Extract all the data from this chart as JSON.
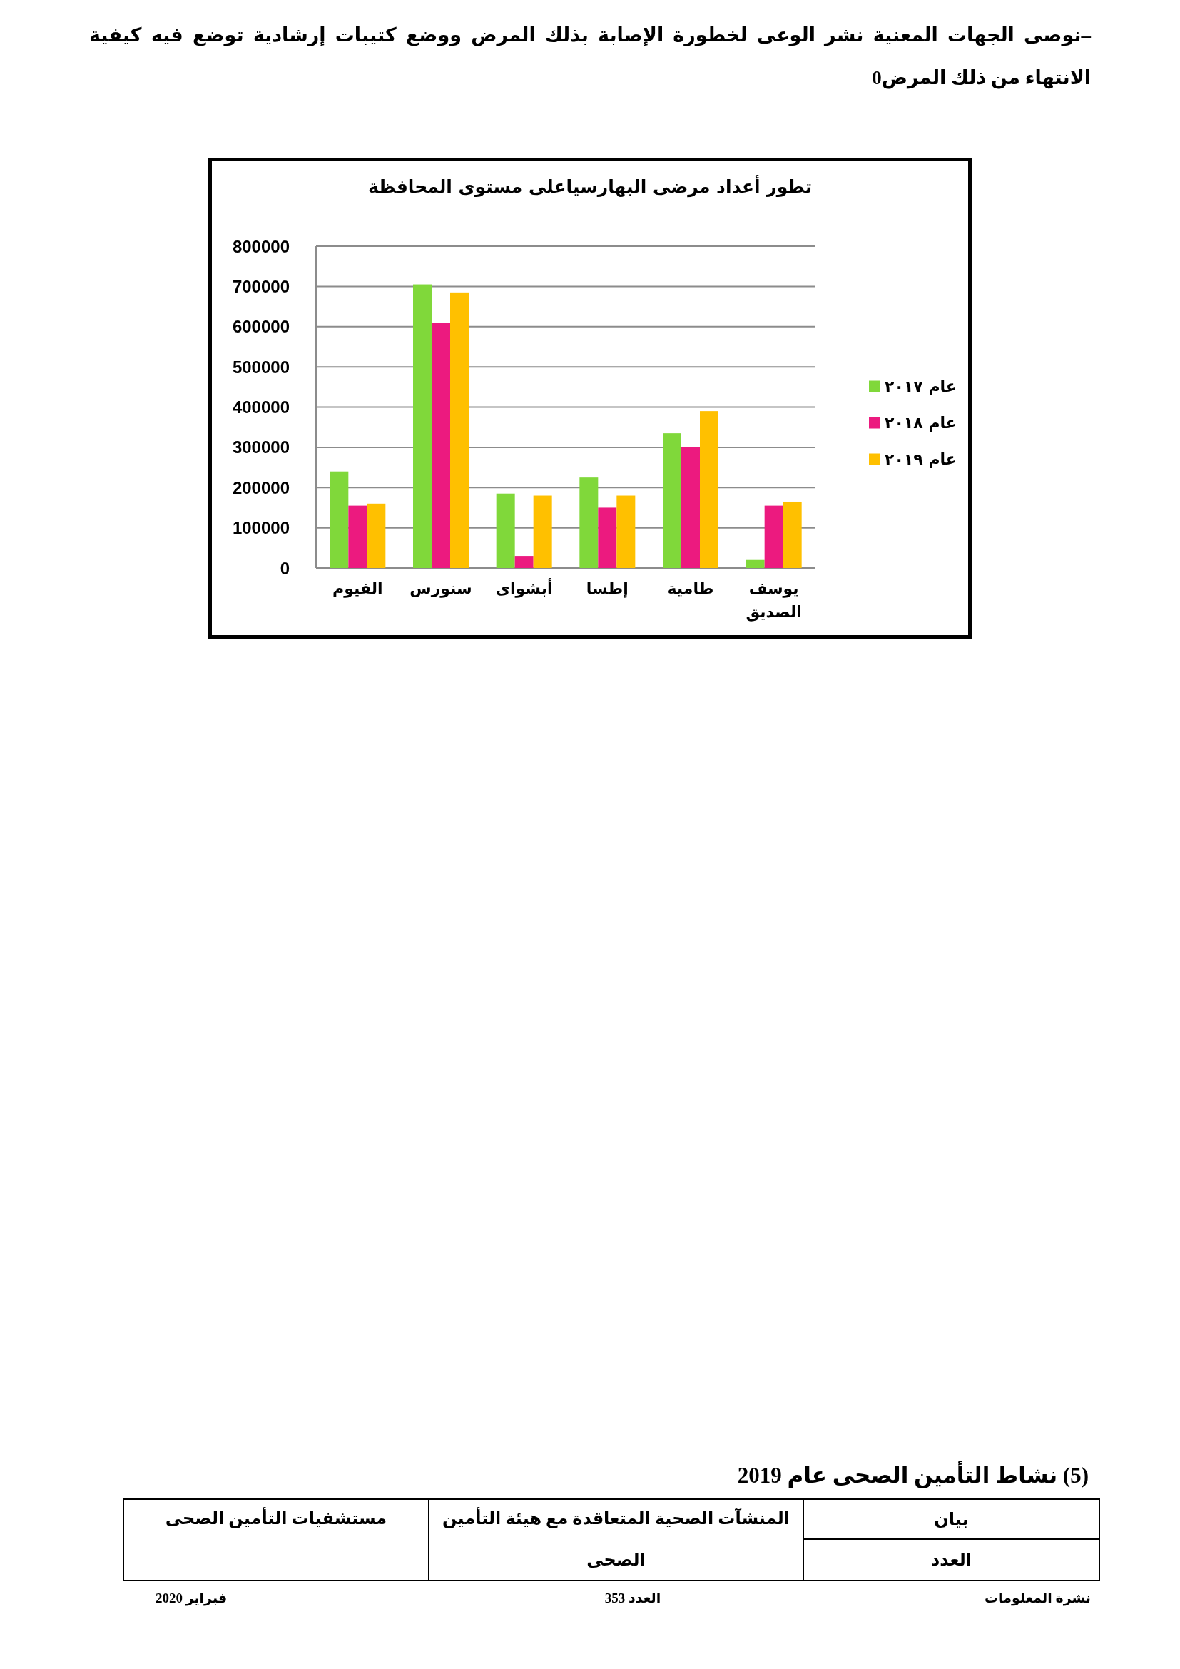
{
  "chart_data": {
    "type": "bar",
    "title": "تطور أعداد مرضى البهارسياعلى مستوى المحافظة",
    "categories": [
      "الفيوم",
      "سنورس",
      "أبشواى",
      "إطسا",
      "طامية",
      "يوسف الصديق"
    ],
    "series": [
      {
        "name": "عام ٢٠١٧",
        "color": "#80d83a",
        "values": [
          240000,
          705000,
          185000,
          225000,
          335000,
          20000
        ]
      },
      {
        "name": "عام ٢٠١٨",
        "color": "#ec1a7f",
        "values": [
          155000,
          610000,
          30000,
          150000,
          300000,
          155000
        ]
      },
      {
        "name": "عام ٢٠١٩",
        "color": "#ffc000",
        "values": [
          160000,
          685000,
          180000,
          180000,
          390000,
          165000
        ]
      }
    ],
    "ylim": [
      0,
      800000
    ],
    "yticks": [
      0,
      100000,
      200000,
      300000,
      400000,
      500000,
      600000,
      700000,
      800000
    ],
    "grid": "y",
    "legend": "right",
    "annotations": [
      "–نوصى الجهات المعنية نشر الوعى لخطورة الإصابة بذلك المرض ووضع كتيبات إرشادية توضع فيه كيفية الانتهاء من ذلك المرض0",
      "(5) نشاط التأمين الصحى عام 2019",
      "بيان",
      "العدد",
      "المنشآت الصحية المتعاقدة مع هيئة التأمين الصحى",
      "مستشفيات التأمين الصحى",
      "نشرة المعلومات",
      "العدد 353",
      "فبراير 2020"
    ]
  }
}
